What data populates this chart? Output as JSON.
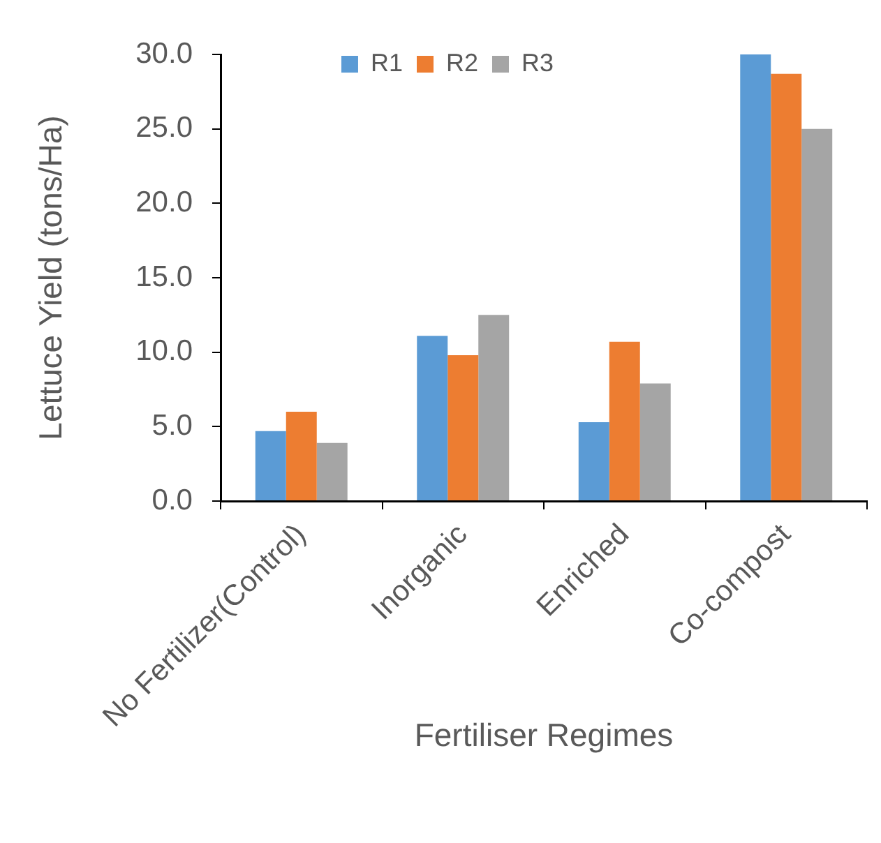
{
  "chart_data": {
    "type": "bar",
    "xlabel": "Fertiliser Regimes",
    "ylabel": "Lettuce Yield (tons/Ha)",
    "categories": [
      "No Fertilizer(Control)",
      "Inorganic",
      "Enriched",
      "Co-compost"
    ],
    "series": [
      {
        "name": "R1",
        "color": "#5b9bd5",
        "values": [
          4.7,
          11.1,
          5.3,
          30.0
        ]
      },
      {
        "name": "R2",
        "color": "#ed7d31",
        "values": [
          6.0,
          9.8,
          10.7,
          28.7
        ]
      },
      {
        "name": "R3",
        "color": "#a5a5a5",
        "values": [
          3.9,
          12.5,
          7.9,
          25.0
        ]
      }
    ],
    "ylim": [
      0,
      30
    ],
    "yticks": [
      {
        "value": 0,
        "label": "0.0"
      },
      {
        "value": 5,
        "label": "5.0"
      },
      {
        "value": 10,
        "label": "10.0"
      },
      {
        "value": 15,
        "label": "15.0"
      },
      {
        "value": 20,
        "label": "20.0"
      },
      {
        "value": 25,
        "label": "25.0"
      },
      {
        "value": 30,
        "label": "30.0"
      }
    ],
    "grid": false,
    "legend": "top"
  }
}
